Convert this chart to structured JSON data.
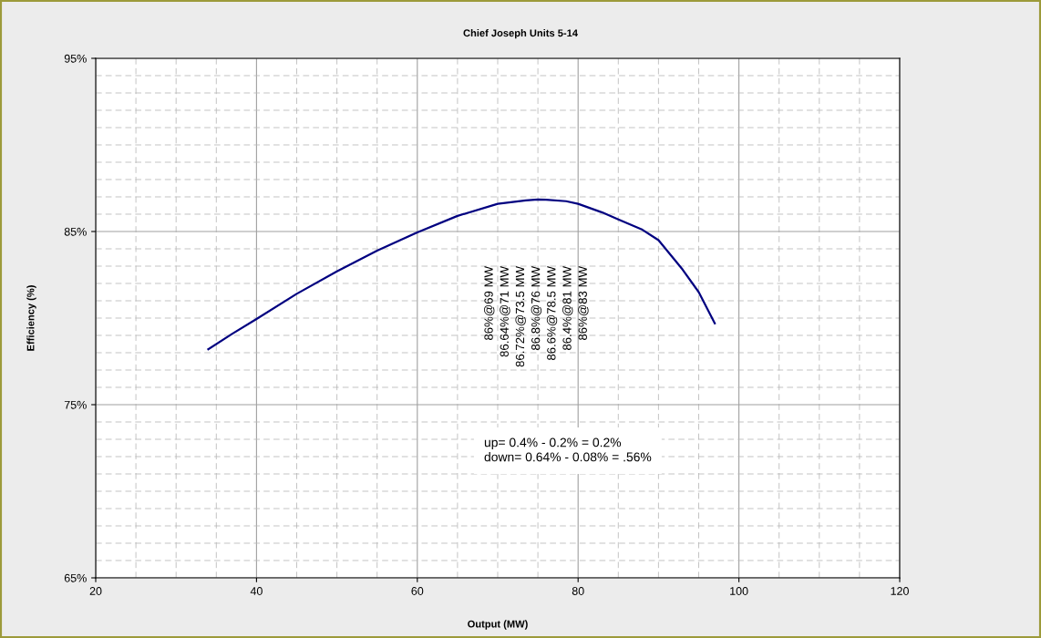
{
  "chart_data": {
    "type": "line",
    "title": "Chief Joseph Units 5-14",
    "xlabel": "Output (MW)",
    "ylabel": "Efficiency (%)",
    "x": [
      34,
      37,
      40,
      45,
      50,
      55,
      60,
      65,
      70,
      73.5,
      75,
      76,
      78.5,
      80,
      83,
      85,
      88,
      90,
      93,
      95,
      97
    ],
    "series": [
      {
        "color": "#000080",
        "values": [
          78.2,
          79.1,
          79.95,
          81.4,
          82.7,
          83.9,
          84.95,
          85.9,
          86.6,
          86.8,
          86.85,
          86.83,
          86.75,
          86.6,
          86.1,
          85.7,
          85.1,
          84.5,
          82.8,
          81.5,
          79.7
        ]
      }
    ],
    "xlim": [
      20,
      120
    ],
    "xticks": [
      20,
      40,
      60,
      80,
      100,
      120
    ],
    "ylim": [
      65,
      95
    ],
    "yticks": [
      {
        "value": 65,
        "label": "65%"
      },
      {
        "value": 75,
        "label": "75%"
      },
      {
        "value": 85,
        "label": "85%"
      },
      {
        "value": 95,
        "label": "95%"
      }
    ],
    "grid": true,
    "legend": false,
    "marker": "none",
    "line_style": "solid",
    "annotations": [
      "86%@69 MW",
      "86.64%@71 MW",
      "86.72%@73.5 MW",
      "86.8%@76 MW",
      "86.6%@78.5 MW",
      "86.4%@81 MW",
      "86%@83 MW",
      "up= 0.4% - 0.2% = 0.2%\ndown= 0.64% - 0.08% = .56%"
    ]
  }
}
